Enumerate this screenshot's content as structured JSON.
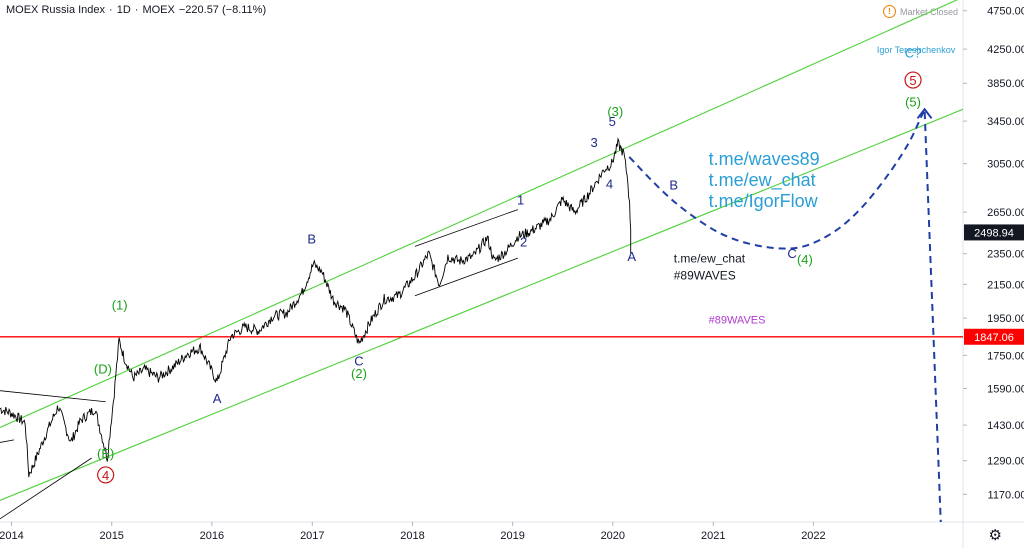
{
  "header": {
    "title": "MOEX Russia Index",
    "interval": "1D",
    "exchange": "MOEX",
    "change": "−220.57 (−8.11%)",
    "sep": "·"
  },
  "market_status": "Market Closed",
  "market_icon": "alert-circle-icon",
  "settings_icon": "gear-icon",
  "colors": {
    "price": "#000000",
    "channel": "#4cd137",
    "support": "#ff0000",
    "projection": "#1f3fa6",
    "wave_blue": "#1f2a8c",
    "wave_green": "#1aa21a",
    "wave_red": "#c81414",
    "link": "#2a9fd6",
    "tag": "#b23bd1",
    "axis_text": "#131722",
    "label_bg": "#131722"
  },
  "chart_data": {
    "type": "line",
    "title": "MOEX Russia Index",
    "y_scale": "log",
    "ylim": [
      1080,
      4900
    ],
    "xlim": [
      "2013-11-20",
      "2023-06-30"
    ],
    "x_ticks": [
      "2014",
      "2015",
      "2016",
      "2017",
      "2018",
      "2019",
      "2020",
      "2021",
      "2022"
    ],
    "y_ticks": [
      1170,
      1290,
      1430,
      1590,
      1750,
      1950,
      2150,
      2350,
      2650,
      3050,
      3450,
      3850,
      4250,
      4750
    ],
    "y_tick_labels": [
      "1170.00",
      "1290.00",
      "1430.00",
      "1590.00",
      "1750.00",
      "1950.00",
      "2150.00",
      "2350.00",
      "2650.00",
      "3050.00",
      "3450.00",
      "3850.00",
      "4250.00",
      "4750.00"
    ],
    "current_price": 2498.94,
    "current_price_label": "2498.94",
    "support_level": 1847.06,
    "support_label": "1847.06",
    "price_series": [
      [
        "2013-11-20",
        1500
      ],
      [
        "2014-01-01",
        1480
      ],
      [
        "2014-02-20",
        1440
      ],
      [
        "2014-03-05",
        1240
      ],
      [
        "2014-03-20",
        1270
      ],
      [
        "2014-05-01",
        1380
      ],
      [
        "2014-06-20",
        1510
      ],
      [
        "2014-08-05",
        1360
      ],
      [
        "2014-09-10",
        1450
      ],
      [
        "2014-11-01",
        1500
      ],
      [
        "2014-12-16",
        1300
      ],
      [
        "2015-01-10",
        1570
      ],
      [
        "2015-01-28",
        1830
      ],
      [
        "2015-02-15",
        1740
      ],
      [
        "2015-03-20",
        1640
      ],
      [
        "2015-05-01",
        1680
      ],
      [
        "2015-06-20",
        1640
      ],
      [
        "2015-08-20",
        1700
      ],
      [
        "2015-10-05",
        1760
      ],
      [
        "2015-11-20",
        1790
      ],
      [
        "2016-01-20",
        1620
      ],
      [
        "2016-03-10",
        1850
      ],
      [
        "2016-05-01",
        1900
      ],
      [
        "2016-06-20",
        1880
      ],
      [
        "2016-08-10",
        1960
      ],
      [
        "2016-10-01",
        1980
      ],
      [
        "2016-11-25",
        2100
      ],
      [
        "2017-01-05",
        2280
      ],
      [
        "2017-02-05",
        2230
      ],
      [
        "2017-03-20",
        2050
      ],
      [
        "2017-05-01",
        2000
      ],
      [
        "2017-06-20",
        1810
      ],
      [
        "2017-08-01",
        1930
      ],
      [
        "2017-09-20",
        2060
      ],
      [
        "2017-11-10",
        2080
      ],
      [
        "2018-01-10",
        2200
      ],
      [
        "2018-03-01",
        2350
      ],
      [
        "2018-04-09",
        2150
      ],
      [
        "2018-05-10",
        2330
      ],
      [
        "2018-06-20",
        2300
      ],
      [
        "2018-08-10",
        2330
      ],
      [
        "2018-10-01",
        2460
      ],
      [
        "2018-10-25",
        2300
      ],
      [
        "2018-12-10",
        2370
      ],
      [
        "2019-01-20",
        2470
      ],
      [
        "2019-03-01",
        2500
      ],
      [
        "2019-04-20",
        2560
      ],
      [
        "2019-05-20",
        2600
      ],
      [
        "2019-07-01",
        2750
      ],
      [
        "2019-08-15",
        2650
      ],
      [
        "2019-10-01",
        2780
      ],
      [
        "2019-12-01",
        3000
      ],
      [
        "2019-12-28",
        3050
      ],
      [
        "2020-01-20",
        3230
      ],
      [
        "2020-02-10",
        3140
      ],
      [
        "2020-02-25",
        2900
      ],
      [
        "2020-03-02",
        2700
      ],
      [
        "2020-03-06",
        2520
      ]
    ],
    "channels": [
      {
        "name": "channel-upper",
        "points": [
          [
            "2013-11-20",
            1420
          ],
          [
            "2023-06-30",
            4940
          ]
        ]
      },
      {
        "name": "channel-lower",
        "points": [
          [
            "2013-11-20",
            1150
          ],
          [
            "2023-06-30",
            3570
          ]
        ]
      },
      {
        "name": "trend-line-1",
        "points": [
          [
            "2013-11-20",
            1580
          ],
          [
            "2014-12-10",
            1530
          ]
        ]
      },
      {
        "name": "trend-line-2",
        "points": [
          [
            "2013-11-20",
            1360
          ],
          [
            "2014-01-10",
            1370
          ]
        ]
      },
      {
        "name": "trend-line-3",
        "points": [
          [
            "2013-11-20",
            1090
          ],
          [
            "2014-10-20",
            1300
          ]
        ]
      },
      {
        "name": "triangle-upper",
        "points": [
          [
            "2018-01-10",
            2400
          ],
          [
            "2019-01-20",
            2670
          ]
        ]
      },
      {
        "name": "triangle-lower",
        "points": [
          [
            "2018-01-10",
            2080
          ],
          [
            "2019-01-20",
            2320
          ]
        ]
      }
    ],
    "projection": [
      [
        "2020-03-01",
        3110
      ],
      [
        "2020-06-15",
        2840
      ],
      [
        "2020-10-01",
        2640
      ],
      [
        "2021-02-15",
        2460
      ],
      [
        "2021-08-01",
        2380
      ],
      [
        "2021-12-15",
        2390
      ],
      [
        "2022-06-01",
        2600
      ],
      [
        "2022-12-01",
        3150
      ],
      [
        "2023-02-10",
        3570
      ],
      [
        "2023-04-10",
        1080
      ]
    ],
    "annotations": [
      {
        "text": "(1)",
        "x": "2015-01-30",
        "y": 2000,
        "color": "wave_green"
      },
      {
        "text": "(D)",
        "x": "2014-11-30",
        "y": 1660,
        "color": "wave_green"
      },
      {
        "text": "(E)",
        "x": "2014-12-10",
        "y": 1300,
        "color": "wave_green"
      },
      {
        "text": "4",
        "x": "2014-12-10",
        "y": 1220,
        "color": "wave_red",
        "circle": true
      },
      {
        "text": "A",
        "x": "2016-01-20",
        "y": 1525,
        "color": "wave_blue"
      },
      {
        "text": "B",
        "x": "2016-12-30",
        "y": 2420,
        "color": "wave_blue"
      },
      {
        "text": "C",
        "x": "2017-06-20",
        "y": 1700,
        "color": "wave_blue"
      },
      {
        "text": "(2)",
        "x": "2017-06-20",
        "y": 1640,
        "color": "wave_green"
      },
      {
        "text": "1",
        "x": "2019-01-30",
        "y": 2710,
        "color": "wave_blue"
      },
      {
        "text": "2",
        "x": "2019-02-10",
        "y": 2400,
        "color": "wave_blue"
      },
      {
        "text": "3",
        "x": "2019-10-25",
        "y": 3200,
        "color": "wave_blue"
      },
      {
        "text": "4",
        "x": "2019-12-20",
        "y": 2840,
        "color": "wave_blue"
      },
      {
        "text": "5",
        "x": "2019-12-30",
        "y": 3400,
        "color": "wave_blue"
      },
      {
        "text": "(3)",
        "x": "2020-01-10",
        "y": 3500,
        "color": "wave_green"
      },
      {
        "text": "A",
        "x": "2020-03-10",
        "y": 2300,
        "color": "wave_blue"
      },
      {
        "text": "B",
        "x": "2020-08-10",
        "y": 2830,
        "color": "wave_blue"
      },
      {
        "text": "C",
        "x": "2021-10-15",
        "y": 2320,
        "color": "wave_blue"
      },
      {
        "text": "(4)",
        "x": "2021-12-01",
        "y": 2280,
        "color": "wave_green"
      },
      {
        "text": "C?",
        "x": "2022-12-30",
        "y": 4150,
        "color": "link"
      },
      {
        "text": "5",
        "x": "2022-12-30",
        "y": 3830,
        "color": "wave_red",
        "circle": true
      },
      {
        "text": "(5)",
        "x": "2022-12-30",
        "y": 3600,
        "color": "wave_green"
      },
      {
        "text": "t.me/waves89",
        "x": "2020-12-15",
        "y": 3040,
        "color": "link",
        "size": 18
      },
      {
        "text": "t.me/ew_chat",
        "x": "2020-12-15",
        "y": 2860,
        "color": "link",
        "size": 18
      },
      {
        "text": "t.me/IgorFlow",
        "x": "2020-12-15",
        "y": 2690,
        "color": "link",
        "size": 18
      },
      {
        "text": "t.me/ew_chat",
        "x": "2020-08-10",
        "y": 2290,
        "color": "axis_text",
        "size": 12
      },
      {
        "text": "#89WAVES",
        "x": "2020-08-10",
        "y": 2180,
        "color": "axis_text",
        "size": 12
      },
      {
        "text": "#89WAVES",
        "x": "2020-12-15",
        "y": 1920,
        "color": "tag",
        "size": 11
      },
      {
        "text": "Igor Tereshchenkov",
        "x": "2022-08-20",
        "y": 4200,
        "color": "link",
        "size": 9
      }
    ]
  }
}
